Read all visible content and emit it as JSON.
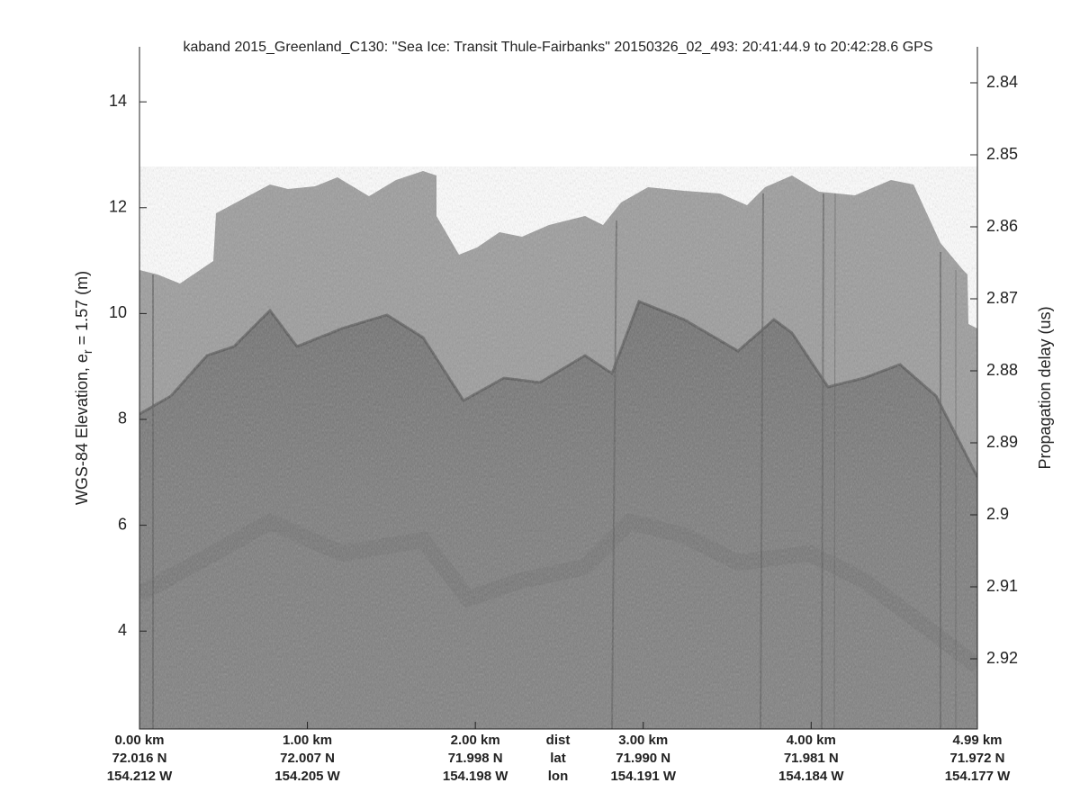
{
  "chart_data": {
    "type": "echogram",
    "title": "kaband 2015_Greenland_C130: \"Sea Ice: Transit Thule-Fairbanks\"  20150326_02_493: 20:41:44.9 to 20:42:28.6 GPS",
    "ylabel": "WGS-84 Elevation, e",
    "ylabel_sub": "r",
    "ylabel_rest": " = 1.57 (m)",
    "y2label": "Propagation delay (us)",
    "xlim": [
      0,
      4.99
    ],
    "xticks": [
      {
        "value": 0,
        "label": "0.00 km"
      },
      {
        "value": 1,
        "label": "1.00 km"
      },
      {
        "value": 2,
        "label": "2.00 km"
      },
      {
        "value": 3,
        "label": "3.00 km"
      },
      {
        "value": 4,
        "label": "4.00 km"
      },
      {
        "value": 4.99,
        "label": "4.99 km"
      }
    ],
    "lat_labels": [
      "72.016 N",
      "72.007 N",
      "71.998 N",
      "71.990 N",
      "71.981 N",
      "71.972 N"
    ],
    "lon_labels": [
      "154.212 W",
      "154.205 W",
      "154.198 W",
      "154.191 W",
      "154.184 W",
      "154.177 W"
    ],
    "row_labels": [
      "dist",
      "lat",
      "lon"
    ],
    "ylim": [
      2.15,
      15.04
    ],
    "yticks": [
      4,
      6,
      8,
      10,
      12,
      14
    ],
    "y2lim": [
      2.92975,
      2.835
    ],
    "y2ticks": [
      2.84,
      2.85,
      2.86,
      2.87,
      2.88,
      2.89,
      2.9,
      2.91,
      2.92
    ]
  }
}
